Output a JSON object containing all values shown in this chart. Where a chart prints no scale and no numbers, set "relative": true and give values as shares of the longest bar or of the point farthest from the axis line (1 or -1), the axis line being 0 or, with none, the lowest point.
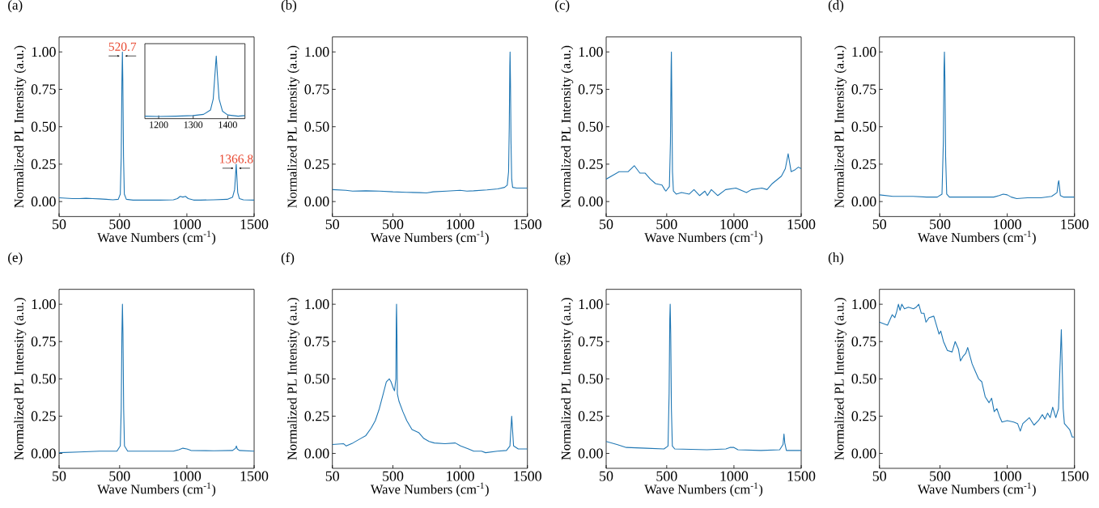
{
  "chart_data": [
    {
      "type": "line",
      "title": "(a)",
      "xlabel": "Wave Numbers (cm$^{-1}$)",
      "ylabel": "Normalized PL Intensity (a.u.)",
      "xlim": [
        50,
        1500
      ],
      "ylim": [
        -0.1,
        1.1
      ],
      "xticks": [
        50,
        500,
        1000,
        1500
      ],
      "yticks": [
        {
          "value": 0,
          "label": "0.00"
        },
        {
          "value": 0.25,
          "label": "0.25"
        },
        {
          "value": 0.5,
          "label": "0.50"
        },
        {
          "value": 0.75,
          "label": "0.75"
        },
        {
          "value": 1,
          "label": "1.00"
        }
      ],
      "series": [
        {
          "color": "#1f77b4",
          "x": [
            50,
            150,
            200,
            250,
            300,
            350,
            400,
            450,
            490,
            505,
            512,
            517,
            520.7,
            524,
            529,
            535,
            550,
            600,
            700,
            800,
            900,
            930,
            950,
            970,
            990,
            1010,
            1050,
            1100,
            1200,
            1300,
            1340,
            1355,
            1362,
            1366.8,
            1371,
            1378,
            1390,
            1420,
            1500
          ],
          "values": [
            0.025,
            0.02,
            0.02,
            0.022,
            0.02,
            0.018,
            0.015,
            0.012,
            0.015,
            0.05,
            0.3,
            0.8,
            1.0,
            0.8,
            0.3,
            0.05,
            0.015,
            0.01,
            0.01,
            0.01,
            0.012,
            0.02,
            0.035,
            0.03,
            0.035,
            0.02,
            0.01,
            0.01,
            0.012,
            0.015,
            0.03,
            0.08,
            0.18,
            0.25,
            0.18,
            0.06,
            0.02,
            0.012,
            0.01
          ]
        }
      ],
      "annotations": [
        {
          "text": "520.7",
          "x": 520.7,
          "y": 1.0
        },
        {
          "text": "1366.8",
          "x": 1366.8,
          "y": 0.25
        }
      ]
    },
    {
      "type": "line",
      "title": "(b)",
      "xlabel": "Wave Numbers (cm$^{-1}$)",
      "ylabel": "Normalized PL Intensity (a.u.)",
      "xlim": [
        50,
        1500
      ],
      "ylim": [
        -0.1,
        1.1
      ],
      "xticks": [
        50,
        500,
        1000,
        1500
      ],
      "yticks": [
        {
          "value": 0,
          "label": "0.00"
        },
        {
          "value": 0.25,
          "label": "0.25"
        },
        {
          "value": 0.5,
          "label": "0.50"
        },
        {
          "value": 0.75,
          "label": "0.75"
        },
        {
          "value": 1,
          "label": "1.00"
        }
      ],
      "series": [
        {
          "color": "#1f77b4",
          "x": [
            50,
            150,
            200,
            300,
            400,
            500,
            600,
            700,
            750,
            800,
            900,
            1000,
            1050,
            1100,
            1200,
            1280,
            1330,
            1350,
            1360,
            1365,
            1369,
            1371,
            1374,
            1378,
            1383,
            1390,
            1420,
            1500
          ],
          "values": [
            0.08,
            0.075,
            0.07,
            0.072,
            0.07,
            0.065,
            0.062,
            0.06,
            0.058,
            0.065,
            0.07,
            0.075,
            0.07,
            0.072,
            0.078,
            0.085,
            0.095,
            0.11,
            0.2,
            0.5,
            0.9,
            1.0,
            0.8,
            0.4,
            0.15,
            0.095,
            0.09,
            0.09
          ]
        }
      ]
    },
    {
      "type": "line",
      "title": "(c)",
      "xlabel": "Wave Numbers (cm$^{-1}$)",
      "ylabel": "Normalized PL Intensity (a.u.)",
      "xlim": [
        50,
        1500
      ],
      "ylim": [
        -0.1,
        1.1
      ],
      "xticks": [
        50,
        500,
        1000,
        1500
      ],
      "yticks": [
        {
          "value": 0,
          "label": "0.00"
        },
        {
          "value": 0.25,
          "label": "0.25"
        },
        {
          "value": 0.5,
          "label": "0.50"
        },
        {
          "value": 0.75,
          "label": "0.75"
        },
        {
          "value": 1,
          "label": "1.00"
        }
      ],
      "series": [
        {
          "color": "#1f77b4",
          "x": [
            50,
            147,
            214,
            259,
            301,
            340,
            378,
            417,
            465,
            485,
            494,
            520,
            528,
            533,
            535,
            538,
            543,
            550,
            571,
            610,
            668,
            703,
            745,
            784,
            803,
            832,
            880,
            938,
            1015,
            1093,
            1131,
            1208,
            1246,
            1285,
            1353,
            1382,
            1403,
            1425,
            1450,
            1479,
            1500
          ],
          "values": [
            0.15,
            0.2,
            0.2,
            0.24,
            0.19,
            0.19,
            0.15,
            0.12,
            0.11,
            0.08,
            0.07,
            0.1,
            0.4,
            0.9,
            1.0,
            0.7,
            0.2,
            0.07,
            0.05,
            0.06,
            0.05,
            0.08,
            0.04,
            0.07,
            0.04,
            0.08,
            0.04,
            0.08,
            0.09,
            0.06,
            0.08,
            0.09,
            0.08,
            0.12,
            0.17,
            0.22,
            0.32,
            0.2,
            0.21,
            0.23,
            0.22
          ]
        }
      ]
    },
    {
      "type": "line",
      "title": "(d)",
      "xlabel": "Wave Numbers (cm$^{-1}$)",
      "ylabel": "Normalized PL Intensity (a.u.)",
      "xlim": [
        50,
        1500
      ],
      "ylim": [
        -0.1,
        1.1
      ],
      "xticks": [
        50,
        500,
        1000,
        1500
      ],
      "yticks": [
        {
          "value": 0,
          "label": "0.00"
        },
        {
          "value": 0.25,
          "label": "0.25"
        },
        {
          "value": 0.5,
          "label": "0.50"
        },
        {
          "value": 0.75,
          "label": "0.75"
        },
        {
          "value": 1,
          "label": "1.00"
        }
      ],
      "series": [
        {
          "color": "#1f77b4",
          "x": [
            50,
            150,
            300,
            400,
            480,
            515,
            525,
            530,
            533,
            537,
            542,
            550,
            570,
            700,
            900,
            940,
            970,
            1000,
            1030,
            1070,
            1150,
            1250,
            1330,
            1370,
            1378,
            1383,
            1388,
            1395,
            1420,
            1500
          ],
          "values": [
            0.045,
            0.035,
            0.035,
            0.03,
            0.03,
            0.05,
            0.4,
            0.9,
            1.0,
            0.8,
            0.3,
            0.05,
            0.03,
            0.03,
            0.03,
            0.04,
            0.05,
            0.045,
            0.03,
            0.02,
            0.025,
            0.025,
            0.035,
            0.06,
            0.12,
            0.14,
            0.1,
            0.04,
            0.03,
            0.03
          ]
        }
      ]
    },
    {
      "type": "line",
      "title": "(e)",
      "xlabel": "Wave Numbers (cm$^{-1}$)",
      "ylabel": "Normalized PL Intensity (a.u.)",
      "xlim": [
        50,
        1500
      ],
      "ylim": [
        -0.1,
        1.1
      ],
      "xticks": [
        50,
        500,
        1000,
        1500
      ],
      "yticks": [
        {
          "value": 0,
          "label": "0.00"
        },
        {
          "value": 0.25,
          "label": "0.25"
        },
        {
          "value": 0.5,
          "label": "0.50"
        },
        {
          "value": 0.75,
          "label": "0.75"
        },
        {
          "value": 1,
          "label": "1.00"
        }
      ],
      "series": [
        {
          "color": "#1f77b4",
          "x": [
            50,
            200,
            350,
            480,
            505,
            512,
            517,
            521,
            525,
            530,
            536,
            560,
            700,
            900,
            940,
            970,
            1000,
            1030,
            1200,
            1340,
            1362,
            1368,
            1375,
            1390,
            1500
          ],
          "values": [
            0.005,
            0.01,
            0.015,
            0.015,
            0.05,
            0.3,
            0.8,
            1.0,
            0.8,
            0.3,
            0.05,
            0.015,
            0.015,
            0.015,
            0.025,
            0.035,
            0.03,
            0.02,
            0.018,
            0.02,
            0.035,
            0.05,
            0.03,
            0.02,
            0.015
          ]
        }
      ]
    },
    {
      "type": "line",
      "title": "(f)",
      "xlabel": "Wave Numbers (cm$^{-1}$)",
      "ylabel": "Normalized PL Intensity (a.u.)",
      "xlim": [
        50,
        1500
      ],
      "ylim": [
        -0.1,
        1.1
      ],
      "xticks": [
        50,
        500,
        1000,
        1500
      ],
      "yticks": [
        {
          "value": 0,
          "label": "0.00"
        },
        {
          "value": 0.25,
          "label": "0.25"
        },
        {
          "value": 0.5,
          "label": "0.50"
        },
        {
          "value": 0.75,
          "label": "0.75"
        },
        {
          "value": 1,
          "label": "1.00"
        }
      ],
      "series": [
        {
          "color": "#1f77b4",
          "x": [
            50,
            134,
            153,
            202,
            260,
            299,
            338,
            369,
            399,
            428,
            451,
            473,
            486,
            506,
            512,
            522,
            525,
            527,
            530,
            533,
            545,
            574,
            603,
            642,
            691,
            730,
            769,
            808,
            886,
            964,
            1003,
            1062,
            1101,
            1159,
            1189,
            1276,
            1344,
            1370,
            1383,
            1397,
            1432,
            1500
          ],
          "values": [
            0.06,
            0.065,
            0.05,
            0.07,
            0.1,
            0.12,
            0.17,
            0.22,
            0.3,
            0.4,
            0.48,
            0.5,
            0.48,
            0.43,
            0.42,
            0.5,
            0.9,
            1.0,
            0.8,
            0.4,
            0.35,
            0.28,
            0.22,
            0.16,
            0.14,
            0.1,
            0.08,
            0.07,
            0.065,
            0.07,
            0.05,
            0.03,
            0.015,
            0.015,
            0.005,
            0.015,
            0.02,
            0.05,
            0.25,
            0.05,
            0.03,
            0.03
          ]
        }
      ]
    },
    {
      "type": "line",
      "title": "(g)",
      "xlabel": "Wave Numbers (cm$^{-1}$)",
      "ylabel": "Normalized PL Intensity (a.u.)",
      "xlim": [
        50,
        1500
      ],
      "ylim": [
        -0.1,
        1.1
      ],
      "xticks": [
        50,
        500,
        1000,
        1500
      ],
      "yticks": [
        {
          "value": 0,
          "label": "0.00"
        },
        {
          "value": 0.25,
          "label": "0.25"
        },
        {
          "value": 0.5,
          "label": "0.50"
        },
        {
          "value": 0.75,
          "label": "0.75"
        },
        {
          "value": 1,
          "label": "1.00"
        }
      ],
      "series": [
        {
          "color": "#1f77b4",
          "x": [
            50,
            130,
            200,
            350,
            480,
            510,
            518,
            523,
            526,
            530,
            535,
            542,
            560,
            800,
            940,
            970,
            1000,
            1030,
            1200,
            1340,
            1365,
            1372,
            1378,
            1390,
            1500
          ],
          "values": [
            0.08,
            0.06,
            0.04,
            0.035,
            0.03,
            0.05,
            0.4,
            0.9,
            1.0,
            0.8,
            0.3,
            0.05,
            0.03,
            0.025,
            0.03,
            0.04,
            0.04,
            0.025,
            0.02,
            0.025,
            0.06,
            0.13,
            0.07,
            0.02,
            0.02
          ]
        }
      ]
    },
    {
      "type": "line",
      "title": "(h)",
      "xlabel": "Wave Numbers (cm$^{-1}$)",
      "ylabel": "Normalized PL Intensity (a.u.)",
      "xlim": [
        50,
        1500
      ],
      "ylim": [
        -0.1,
        1.1
      ],
      "xticks": [
        50,
        500,
        1000,
        1500
      ],
      "yticks": [
        {
          "value": 0,
          "label": "0.00"
        },
        {
          "value": 0.25,
          "label": "0.25"
        },
        {
          "value": 0.5,
          "label": "0.50"
        },
        {
          "value": 0.75,
          "label": "0.75"
        },
        {
          "value": 1,
          "label": "1.00"
        }
      ],
      "series": [
        {
          "color": "#1f77b4",
          "x": [
            50,
            110,
            145,
            164,
            178,
            191,
            203,
            216,
            236,
            265,
            303,
            323,
            342,
            361,
            381,
            396,
            419,
            454,
            477,
            493,
            506,
            526,
            555,
            590,
            613,
            637,
            652,
            671,
            691,
            706,
            739,
            758,
            787,
            811,
            836,
            865,
            884,
            903,
            923,
            942,
            961,
            1000,
            1048,
            1077,
            1097,
            1116,
            1164,
            1199,
            1232,
            1261,
            1280,
            1300,
            1319,
            1338,
            1361,
            1381,
            1402,
            1416,
            1425,
            1464,
            1483,
            1500
          ],
          "values": [
            0.88,
            0.86,
            0.93,
            0.91,
            0.95,
            1.0,
            0.96,
            1.0,
            0.97,
            0.98,
            0.97,
            0.98,
            1.0,
            0.94,
            0.94,
            0.88,
            0.91,
            0.92,
            0.85,
            0.8,
            0.82,
            0.75,
            0.69,
            0.68,
            0.75,
            0.7,
            0.62,
            0.65,
            0.67,
            0.71,
            0.6,
            0.56,
            0.5,
            0.48,
            0.38,
            0.34,
            0.37,
            0.28,
            0.3,
            0.25,
            0.21,
            0.22,
            0.21,
            0.2,
            0.15,
            0.2,
            0.24,
            0.19,
            0.22,
            0.26,
            0.23,
            0.27,
            0.24,
            0.31,
            0.24,
            0.3,
            0.83,
            0.3,
            0.2,
            0.16,
            0.11,
            0.11
          ]
        }
      ]
    },
    {
      "type": "line",
      "relative": true,
      "tick_labels": "x",
      "xlim": [
        1160,
        1450
      ],
      "xticks": [
        1200,
        1300,
        1400
      ],
      "series": [
        {
          "color": "#1f77b4",
          "x": [
            1160,
            1200,
            1250,
            1300,
            1330,
            1350,
            1358,
            1363,
            1366.8,
            1370,
            1375,
            1385,
            1400,
            1430,
            1450
          ],
          "values": [
            0.02,
            0.015,
            0.02,
            0.03,
            0.05,
            0.12,
            0.3,
            0.7,
            1.0,
            0.7,
            0.3,
            0.1,
            0.04,
            0.02,
            0.03
          ]
        }
      ]
    }
  ]
}
